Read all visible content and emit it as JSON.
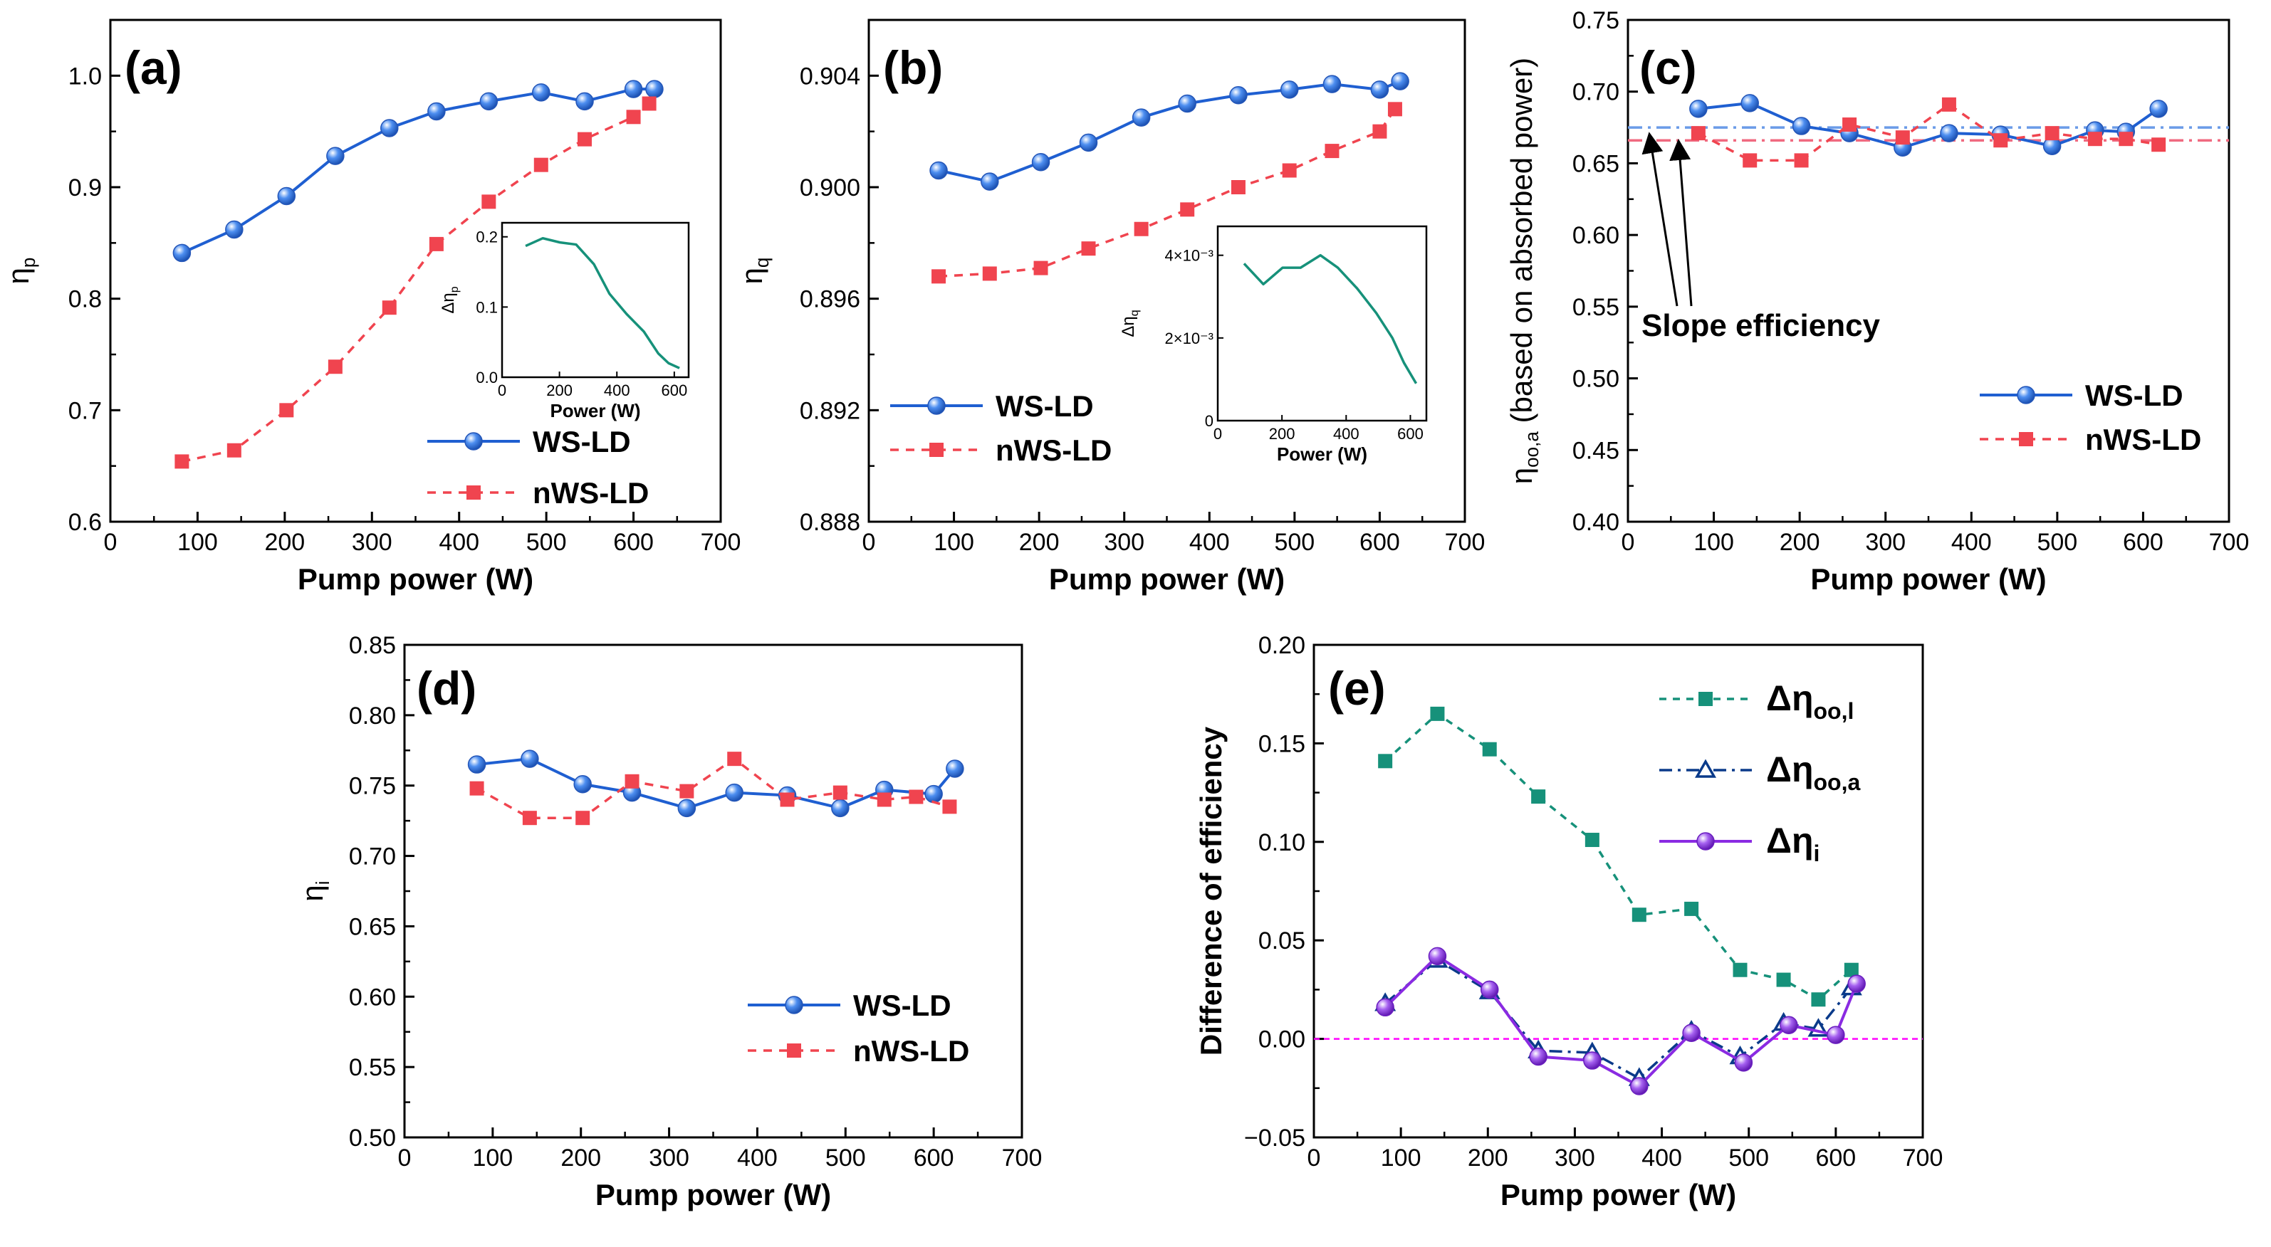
{
  "colors": {
    "ws": "#1f5fd1",
    "ws_fill": "#4d8ef0",
    "nws": "#f0444f",
    "teal": "#16917a",
    "navy": "#0a3a8a",
    "purple": "#8a2be2",
    "magenta": "#ff00ff",
    "ws_ref": "#6a9be8",
    "nws_ref": "#f06a80"
  },
  "chart_data": [
    {
      "id": "a",
      "type": "line",
      "panel_label": "(a)",
      "xlabel": "Pump power (W)",
      "ylabel": "η",
      "ylabel_sub": "p",
      "xlim": [
        0,
        700
      ],
      "ylim": [
        0.6,
        1.05
      ],
      "xticks": [
        0,
        100,
        200,
        300,
        400,
        500,
        600,
        700
      ],
      "yticks": [
        0.6,
        0.7,
        0.8,
        0.9,
        1.0
      ],
      "ytick_labels": [
        "0.6",
        "0.7",
        "0.8",
        "0.9",
        "1.0"
      ],
      "legend": "bottom-right",
      "series": [
        {
          "name": "WS-LD",
          "style": "ws",
          "x": [
            82,
            142,
            202,
            258,
            320,
            374,
            434,
            494,
            544,
            600,
            624
          ],
          "y": [
            0.841,
            0.862,
            0.892,
            0.928,
            0.953,
            0.968,
            0.977,
            0.985,
            0.977,
            0.988,
            0.988
          ]
        },
        {
          "name": "nWS-LD",
          "style": "nws",
          "x": [
            82,
            142,
            202,
            258,
            320,
            374,
            434,
            494,
            544,
            600,
            618
          ],
          "y": [
            0.654,
            0.664,
            0.7,
            0.739,
            0.792,
            0.849,
            0.887,
            0.92,
            0.943,
            0.963,
            0.975
          ]
        }
      ],
      "inset": {
        "xlabel": "Power (W)",
        "ylabel": "Δη",
        "ylabel_sub": "p",
        "xlim": [
          0,
          650
        ],
        "ylim": [
          0,
          0.22
        ],
        "xticks": [
          0,
          200,
          400,
          600
        ],
        "xtick_labels": [
          "0",
          "200",
          "400",
          "600"
        ],
        "yticks": [
          0,
          0.1,
          0.2
        ],
        "ytick_labels": [
          "0.0",
          "0.1",
          "0.2"
        ],
        "x": [
          82,
          142,
          202,
          258,
          320,
          374,
          434,
          494,
          544,
          580,
          618
        ],
        "y": [
          0.187,
          0.198,
          0.192,
          0.189,
          0.161,
          0.119,
          0.09,
          0.065,
          0.034,
          0.02,
          0.013
        ]
      }
    },
    {
      "id": "b",
      "type": "line",
      "panel_label": "(b)",
      "xlabel": "Pump power (W)",
      "ylabel": "η",
      "ylabel_sub": "q",
      "xlim": [
        0,
        700
      ],
      "ylim": [
        0.888,
        0.906
      ],
      "xticks": [
        0,
        100,
        200,
        300,
        400,
        500,
        600,
        700
      ],
      "yticks": [
        0.888,
        0.892,
        0.896,
        0.9,
        0.904
      ],
      "ytick_labels": [
        "0.888",
        "0.892",
        "0.896",
        "0.900",
        "0.904"
      ],
      "legend": "bottom-left",
      "series": [
        {
          "name": "WS-LD",
          "style": "ws",
          "x": [
            82,
            142,
            202,
            258,
            320,
            374,
            434,
            494,
            544,
            600,
            624
          ],
          "y": [
            0.9006,
            0.9002,
            0.9009,
            0.9016,
            0.9025,
            0.903,
            0.9033,
            0.9035,
            0.9037,
            0.9035,
            0.9038
          ]
        },
        {
          "name": "nWS-LD",
          "style": "nws",
          "x": [
            82,
            142,
            202,
            258,
            320,
            374,
            434,
            494,
            544,
            600,
            618
          ],
          "y": [
            0.8968,
            0.8969,
            0.8971,
            0.8978,
            0.8985,
            0.8992,
            0.9,
            0.9006,
            0.9013,
            0.902,
            0.9028
          ]
        }
      ],
      "inset": {
        "xlabel": "Power (W)",
        "ylabel": "Δη",
        "ylabel_sub": "q",
        "xlim": [
          0,
          650
        ],
        "ylim": [
          0,
          0.0047
        ],
        "xticks": [
          0,
          200,
          400,
          600
        ],
        "xtick_labels": [
          "0",
          "200",
          "400",
          "600"
        ],
        "yticks": [
          0,
          0.002,
          0.004
        ],
        "ytick_labels": [
          "0",
          "2×10⁻³",
          "4×10⁻³"
        ],
        "x": [
          82,
          142,
          202,
          258,
          320,
          374,
          434,
          494,
          544,
          580,
          618
        ],
        "y": [
          0.0038,
          0.0033,
          0.0037,
          0.0037,
          0.004,
          0.0037,
          0.0032,
          0.0026,
          0.002,
          0.0014,
          0.0009
        ]
      }
    },
    {
      "id": "c",
      "type": "line",
      "panel_label": "(c)",
      "xlabel": "Pump power (W)",
      "ylabel": "η",
      "ylabel_sub": "oo,a",
      "ylabel_rest": " (based on absorbed power)",
      "xlim": [
        0,
        700
      ],
      "ylim": [
        0.4,
        0.75
      ],
      "xticks": [
        0,
        100,
        200,
        300,
        400,
        500,
        600,
        700
      ],
      "yticks": [
        0.4,
        0.45,
        0.5,
        0.55,
        0.6,
        0.65,
        0.7,
        0.75
      ],
      "ytick_labels": [
        "0.40",
        "0.45",
        "0.50",
        "0.55",
        "0.60",
        "0.65",
        "0.70",
        "0.75"
      ],
      "legend": "bottom-right",
      "annotation": "Slope efficiency",
      "ref_lines": [
        {
          "y": 0.675,
          "style": "ws"
        },
        {
          "y": 0.666,
          "style": "nws"
        }
      ],
      "series": [
        {
          "name": "WS-LD",
          "style": "ws",
          "x": [
            82,
            142,
            202,
            258,
            320,
            374,
            434,
            494,
            544,
            580,
            618
          ],
          "y": [
            0.688,
            0.692,
            0.676,
            0.671,
            0.661,
            0.671,
            0.67,
            0.662,
            0.673,
            0.672,
            0.688
          ]
        },
        {
          "name": "nWS-LD",
          "style": "nws",
          "x": [
            82,
            142,
            202,
            258,
            320,
            374,
            434,
            494,
            544,
            580,
            618
          ],
          "y": [
            0.671,
            0.652,
            0.652,
            0.677,
            0.668,
            0.691,
            0.666,
            0.671,
            0.667,
            0.667,
            0.663
          ]
        }
      ]
    },
    {
      "id": "d",
      "type": "line",
      "panel_label": "(d)",
      "xlabel": "Pump power (W)",
      "ylabel": "η",
      "ylabel_sub": "i",
      "xlim": [
        0,
        700
      ],
      "ylim": [
        0.5,
        0.85
      ],
      "xticks": [
        0,
        100,
        200,
        300,
        400,
        500,
        600,
        700
      ],
      "yticks": [
        0.5,
        0.55,
        0.6,
        0.65,
        0.7,
        0.75,
        0.8,
        0.85
      ],
      "ytick_labels": [
        "0.50",
        "0.55",
        "0.60",
        "0.65",
        "0.70",
        "0.75",
        "0.80",
        "0.85"
      ],
      "legend": "bottom-right",
      "series": [
        {
          "name": "WS-LD",
          "style": "ws",
          "x": [
            82,
            142,
            202,
            258,
            320,
            374,
            434,
            494,
            544,
            600,
            624
          ],
          "y": [
            0.765,
            0.769,
            0.751,
            0.745,
            0.734,
            0.745,
            0.743,
            0.734,
            0.747,
            0.744,
            0.762
          ]
        },
        {
          "name": "nWS-LD",
          "style": "nws",
          "x": [
            82,
            142,
            202,
            258,
            320,
            374,
            434,
            494,
            544,
            580,
            618
          ],
          "y": [
            0.748,
            0.727,
            0.727,
            0.753,
            0.746,
            0.769,
            0.74,
            0.745,
            0.74,
            0.742,
            0.735
          ]
        }
      ]
    },
    {
      "id": "e",
      "type": "line",
      "panel_label": "(e)",
      "xlabel": "Pump power (W)",
      "ylabel": "Difference of efficiency",
      "xlim": [
        0,
        700
      ],
      "ylim": [
        -0.05,
        0.2
      ],
      "xticks": [
        0,
        100,
        200,
        300,
        400,
        500,
        600,
        700
      ],
      "yticks": [
        -0.05,
        0,
        0.05,
        0.1,
        0.15,
        0.2
      ],
      "ytick_labels": [
        "−0.05",
        "0.00",
        "0.05",
        "0.10",
        "0.15",
        "0.20"
      ],
      "legend": "top-right",
      "zero_line": 0,
      "series": [
        {
          "name": "Δη",
          "sub": "oo,l",
          "style": "teal",
          "x": [
            82,
            142,
            202,
            258,
            320,
            374,
            434,
            490,
            540,
            580,
            618
          ],
          "y": [
            0.141,
            0.165,
            0.147,
            0.123,
            0.101,
            0.063,
            0.066,
            0.035,
            0.03,
            0.02,
            0.035
          ]
        },
        {
          "name": "Δη",
          "sub": "oo,a",
          "style": "navy",
          "x": [
            82,
            142,
            202,
            258,
            320,
            374,
            434,
            490,
            540,
            580,
            618
          ],
          "y": [
            0.018,
            0.04,
            0.024,
            -0.006,
            -0.007,
            -0.02,
            0.004,
            -0.009,
            0.008,
            0.005,
            0.026
          ]
        },
        {
          "name": "Δη",
          "sub": "i",
          "style": "purple",
          "x": [
            82,
            142,
            202,
            258,
            320,
            374,
            434,
            494,
            546,
            600,
            624
          ],
          "y": [
            0.016,
            0.042,
            0.025,
            -0.009,
            -0.011,
            -0.024,
            0.003,
            -0.012,
            0.007,
            0.002,
            0.028
          ]
        }
      ]
    }
  ]
}
